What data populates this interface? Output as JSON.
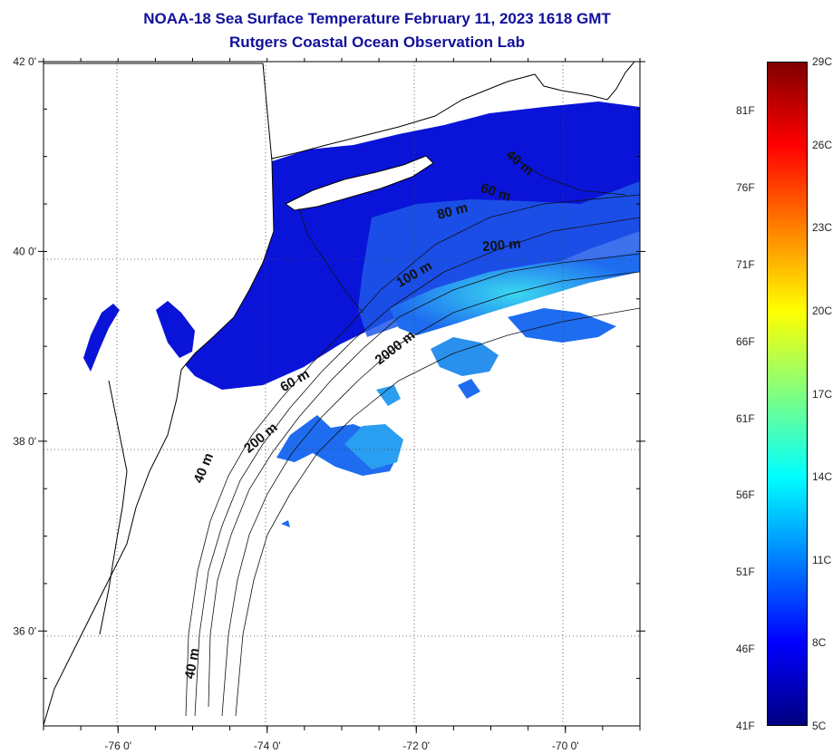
{
  "title": {
    "line1": "NOAA-18 Sea Surface Temperature February 11, 2023 1618 GMT",
    "line2": "Rutgers Coastal Ocean Observation Lab"
  },
  "map": {
    "lat_range": [
      35,
      42
    ],
    "lon_range": [
      -77,
      -69
    ],
    "lat_labels": [
      {
        "lat": 42,
        "text": "42 0'"
      },
      {
        "lat": 40,
        "text": "40 0'"
      },
      {
        "lat": 38,
        "text": "38 0'"
      },
      {
        "lat": 36,
        "text": "36 0'"
      }
    ],
    "lon_labels": [
      {
        "lon": -76,
        "text": "-76 0'"
      },
      {
        "lon": -74,
        "text": "-74 0'"
      },
      {
        "lon": -72,
        "text": "-72 0'"
      },
      {
        "lon": -70,
        "text": "-70 0'"
      }
    ],
    "contour_labels": [
      {
        "text": "40 m",
        "lon": -70.65,
        "lat": 40.9,
        "angle": 40
      },
      {
        "text": "60 m",
        "lon": -70.95,
        "lat": 40.58,
        "angle": 18
      },
      {
        "text": "80 m",
        "lon": -71.5,
        "lat": 40.38,
        "angle": -15
      },
      {
        "text": "200 m",
        "lon": -70.85,
        "lat": 40.02,
        "angle": -5
      },
      {
        "text": "100 m",
        "lon": -72.0,
        "lat": 39.72,
        "angle": -30
      },
      {
        "text": "2000 m",
        "lon": -72.25,
        "lat": 38.95,
        "angle": -38
      },
      {
        "text": "60 m",
        "lon": -73.6,
        "lat": 38.6,
        "angle": -30
      },
      {
        "text": "200 m",
        "lon": -74.05,
        "lat": 38.0,
        "angle": -40
      },
      {
        "text": "40 m",
        "lon": -74.8,
        "lat": 37.7,
        "angle": -68
      },
      {
        "text": "40 m",
        "lon": -74.95,
        "lat": 35.65,
        "angle": -80
      }
    ],
    "colors": {
      "land": "#ffffff",
      "coast": "#000000",
      "cold_water": "#0a14d8",
      "mid_water": "#1e6cf0",
      "warm_patch": "#30d2ee",
      "title": "#10109c"
    }
  },
  "colorbar": {
    "gradient": [
      "#000080",
      "#0000ff",
      "#0080ff",
      "#00ffff",
      "#80ff80",
      "#ffff00",
      "#ff8000",
      "#ff0000",
      "#800000"
    ],
    "celsius_labels": [
      "29C",
      "26C",
      "23C",
      "20C",
      "17C",
      "14C",
      "11C",
      "8C",
      "5C"
    ],
    "fahrenheit_labels": [
      "81F",
      "76F",
      "71F",
      "66F",
      "61F",
      "56F",
      "51F",
      "46F",
      "41F"
    ],
    "celsius_values": [
      29,
      26,
      23,
      20,
      17,
      14,
      11,
      8,
      5
    ],
    "fahrenheit_values": [
      81,
      76,
      71,
      66,
      61,
      56,
      51,
      46,
      41
    ],
    "range_c": [
      5,
      29
    ]
  }
}
